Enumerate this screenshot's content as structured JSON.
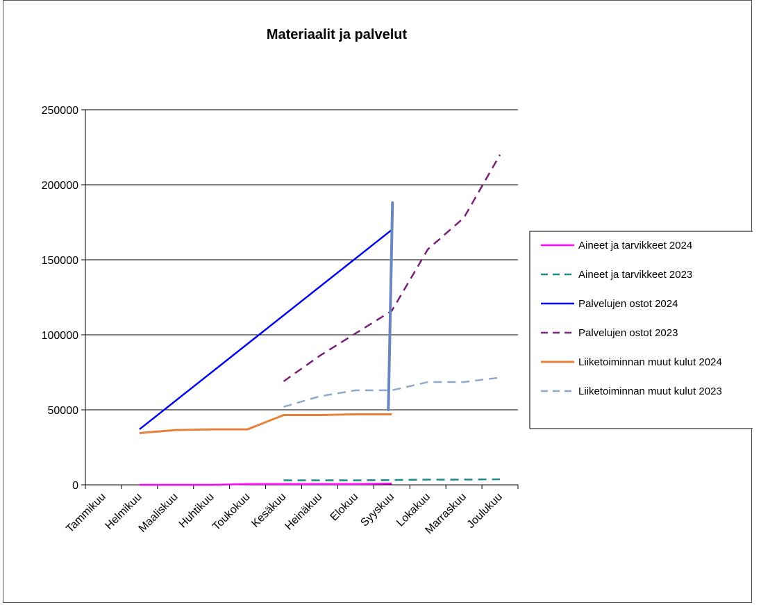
{
  "chart_data": {
    "type": "line",
    "title": "Materiaalit ja palvelut",
    "xlabel": "",
    "ylabel": "",
    "categories": [
      "Tammikuu",
      "Helmikuu",
      "Maaliskuu",
      "Huhtikuu",
      "Toukokuu",
      "Kesäkuu",
      "Heinäkuu",
      "Elokuu",
      "Syyskuu",
      "Lokakuu",
      "Marraskuu",
      "Joulukuu"
    ],
    "ylim": [
      0,
      250000
    ],
    "yticks": [
      "0",
      "50000",
      "100000",
      "150000",
      "200000",
      "250000"
    ],
    "ytick_values": [
      0,
      50000,
      100000,
      150000,
      200000,
      250000
    ],
    "grid": true,
    "legend_position": "right",
    "series": [
      {
        "name": "Aineet ja tarvikkeet 2024",
        "color": "#ff00ff",
        "dash": "solid",
        "values": [
          null,
          0,
          0,
          0,
          500,
          500,
          500,
          500,
          800,
          null,
          null,
          null
        ]
      },
      {
        "name": "Aineet ja tarvikkeet 2023",
        "color": "#1f8a8a",
        "dash": "dashed",
        "values": [
          null,
          null,
          null,
          null,
          null,
          3000,
          3000,
          3000,
          3200,
          3500,
          3500,
          3700
        ]
      },
      {
        "name": "Palvelujen ostot 2024",
        "color": "#0000ee",
        "dash": "solid",
        "values": [
          null,
          37000,
          null,
          null,
          null,
          null,
          null,
          null,
          170000,
          null,
          null,
          null
        ]
      },
      {
        "name": "Palvelujen ostot 2023",
        "color": "#7b1f7b",
        "dash": "dashed",
        "values": [
          null,
          null,
          null,
          null,
          null,
          69000,
          86000,
          101000,
          116000,
          157000,
          178000,
          220000
        ]
      },
      {
        "name": "Liiketoiminnan muut kulut 2024",
        "color": "#e8803a",
        "dash": "solid",
        "values": [
          null,
          34500,
          36500,
          37000,
          37000,
          46500,
          46500,
          47000,
          47000,
          null,
          null,
          null
        ]
      },
      {
        "name": "Liiketoiminnan muut kulut 2023",
        "color": "#8fa8d0",
        "dash": "dashed",
        "values": [
          null,
          null,
          null,
          null,
          null,
          52000,
          59000,
          63000,
          63000,
          68500,
          68500,
          71500
        ]
      }
    ],
    "annotations": [
      {
        "type": "vertical-line",
        "category": "Syyskuu",
        "y_from": 50000,
        "y_to": 188000,
        "color": "#6a86bf"
      }
    ]
  }
}
